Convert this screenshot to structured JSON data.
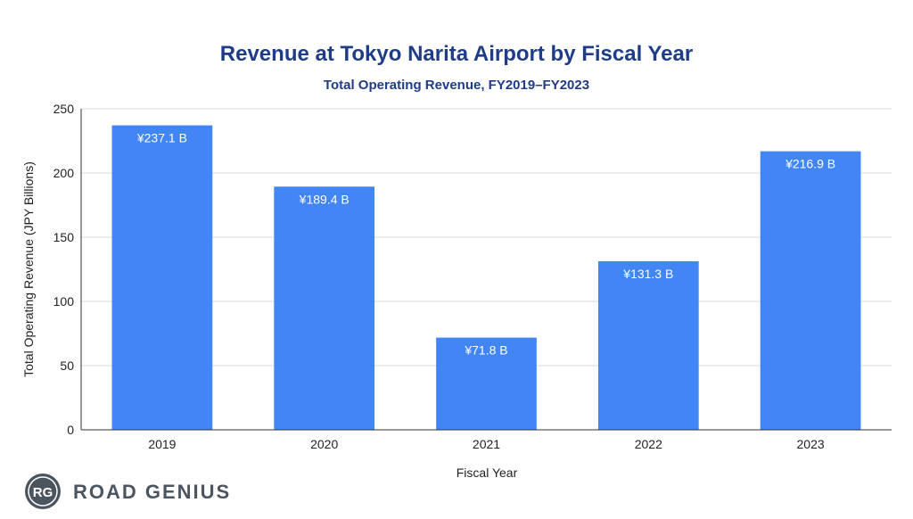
{
  "chart_data": {
    "type": "bar",
    "title": "Revenue at Tokyo Narita Airport by Fiscal Year",
    "subtitle": "Total Operating Revenue, FY2019–FY2023",
    "xlabel": "Fiscal Year",
    "ylabel": "Total Operating Revenue (JPY Billions)",
    "categories": [
      "2019",
      "2020",
      "2021",
      "2022",
      "2023"
    ],
    "values": [
      237.1,
      189.4,
      71.8,
      131.3,
      216.9
    ],
    "data_labels": [
      "¥237.1  B",
      "¥189.4  B",
      "¥71.8  B",
      "¥131.3  B",
      "¥216.9  B"
    ],
    "ylim": [
      0,
      250
    ],
    "yticks": [
      0,
      50,
      100,
      150,
      200,
      250
    ],
    "grid": true,
    "bar_color": "#4285F4"
  },
  "branding": {
    "logo_mark": "RG",
    "logo_text": "ROAD GENIUS",
    "logo_color": "#4a5560"
  }
}
